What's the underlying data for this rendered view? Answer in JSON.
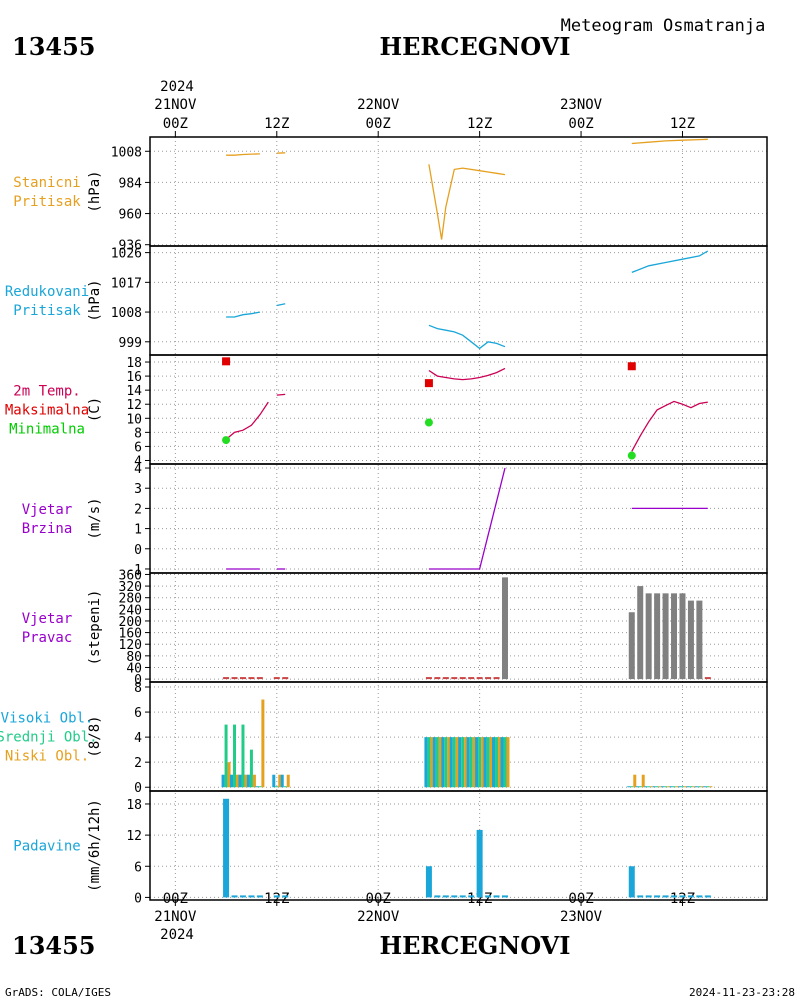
{
  "header": {
    "station_id": "13455",
    "station_name": "HERCEGNOVI",
    "chart_title": "Meteogram Osmatranja"
  },
  "footer": {
    "station_id": "13455",
    "station_name": "HERCEGNOVI",
    "credit": "GrADS: COLA/IGES",
    "timestamp": "2024-11-23-23:28"
  },
  "time_axis": {
    "year": "2024",
    "ticks": [
      {
        "hour": 0,
        "line1": "00Z",
        "line2": "21NOV"
      },
      {
        "hour": 12,
        "line1": "12Z",
        "line2": ""
      },
      {
        "hour": 24,
        "line1": "00Z",
        "line2": "22NOV"
      },
      {
        "hour": 36,
        "line1": "12Z",
        "line2": ""
      },
      {
        "hour": 48,
        "line1": "00Z",
        "line2": "23NOV"
      },
      {
        "hour": 60,
        "line1": "12Z",
        "line2": ""
      }
    ],
    "xlim_hours": [
      -3,
      70
    ],
    "x_units": "hours since 2024-11-21 00Z"
  },
  "chart_data": [
    {
      "type": "line",
      "panel_labels": [
        {
          "text": "Stanicni",
          "color": "#e6a020"
        },
        {
          "text": "Pritisak",
          "color": "#e6a020"
        }
      ],
      "ylabel": "(hPa)",
      "ylim": [
        935,
        1019
      ],
      "yticks": [
        936,
        960,
        984,
        1008
      ],
      "color": "#e6a020",
      "series": [
        {
          "points": [
            [
              6,
              1005
            ],
            [
              7,
              1005
            ],
            [
              8,
              1005.5
            ],
            [
              9,
              1005.8
            ],
            [
              10,
              1006
            ]
          ]
        },
        {
          "points": [
            [
              12,
              1006.5
            ],
            [
              13,
              1006.8
            ]
          ]
        },
        {
          "points": [
            [
              30,
              998
            ],
            [
              31,
              960
            ],
            [
              31.5,
              940
            ],
            [
              32,
              965
            ],
            [
              33,
              994
            ],
            [
              34,
              995
            ],
            [
              36,
              993
            ],
            [
              37,
              992
            ],
            [
              38,
              991
            ],
            [
              39,
              990
            ]
          ]
        },
        {
          "points": [
            [
              54,
              1014
            ],
            [
              56,
              1015
            ],
            [
              58,
              1016
            ],
            [
              60,
              1016.5
            ],
            [
              62,
              1017
            ],
            [
              63,
              1017.2
            ]
          ]
        }
      ]
    },
    {
      "type": "line",
      "panel_labels": [
        {
          "text": "Redukovani",
          "color": "#1aa6d9"
        },
        {
          "text": "Pritisak",
          "color": "#1aa6d9"
        }
      ],
      "ylabel": "(hPa)",
      "ylim": [
        995,
        1028
      ],
      "yticks": [
        999,
        1008,
        1017,
        1026
      ],
      "color": "#1aa6d9",
      "series": [
        {
          "points": [
            [
              6,
              1006.5
            ],
            [
              7,
              1006.5
            ],
            [
              8,
              1007.2
            ],
            [
              9,
              1007.5
            ],
            [
              10,
              1008
            ]
          ]
        },
        {
          "points": [
            [
              12,
              1010
            ],
            [
              13,
              1010.5
            ]
          ]
        },
        {
          "points": [
            [
              30,
              1004
            ],
            [
              31,
              1003
            ],
            [
              32,
              1002.5
            ],
            [
              33,
              1002
            ],
            [
              34,
              1001
            ],
            [
              35,
              999
            ],
            [
              36,
              997
            ],
            [
              37,
              999
            ],
            [
              38,
              998.5
            ],
            [
              39,
              997.5
            ]
          ]
        },
        {
          "points": [
            [
              54,
              1020
            ],
            [
              56,
              1022
            ],
            [
              58,
              1023
            ],
            [
              60,
              1024
            ],
            [
              62,
              1025
            ],
            [
              63,
              1026.5
            ]
          ]
        }
      ]
    },
    {
      "type": "line",
      "panel_labels": [
        {
          "text": "2m Temp.",
          "color": "#cc0055"
        },
        {
          "text": "Maksimalna",
          "color": "#e00000"
        },
        {
          "text": "Minimalna",
          "color": "#00cc00"
        }
      ],
      "ylabel": "(C)",
      "ylim": [
        3.5,
        19
      ],
      "yticks": [
        4,
        6,
        8,
        10,
        12,
        14,
        16,
        18
      ],
      "color": "#cc0055",
      "max_color": "#e00000",
      "min_color": "#22dd22",
      "series": [
        {
          "points": [
            [
              6,
              7
            ],
            [
              7,
              8
            ],
            [
              8,
              8.3
            ],
            [
              9,
              9
            ],
            [
              10,
              10.5
            ],
            [
              11,
              12.3
            ]
          ]
        },
        {
          "points": [
            [
              12,
              13.3
            ],
            [
              13,
              13.4
            ]
          ]
        },
        {
          "points": [
            [
              30,
              16.8
            ],
            [
              31,
              16
            ],
            [
              32,
              15.8
            ],
            [
              33,
              15.6
            ],
            [
              34,
              15.5
            ],
            [
              35,
              15.6
            ],
            [
              36,
              15.8
            ],
            [
              37,
              16.1
            ],
            [
              38,
              16.5
            ],
            [
              39,
              17.1
            ]
          ]
        },
        {
          "points": [
            [
              54,
              5.3
            ],
            [
              55,
              7.5
            ],
            [
              56,
              9.5
            ],
            [
              57,
              11.2
            ],
            [
              58,
              11.8
            ],
            [
              59,
              12.4
            ],
            [
              60,
              12
            ],
            [
              61,
              11.5
            ],
            [
              62,
              12.1
            ],
            [
              63,
              12.3
            ]
          ]
        }
      ],
      "max_points": [
        [
          6,
          18.1
        ],
        [
          30,
          15
        ],
        [
          54,
          17.4
        ]
      ],
      "min_points": [
        [
          6,
          6.9
        ],
        [
          30,
          9.4
        ],
        [
          54,
          4.7
        ]
      ]
    },
    {
      "type": "line",
      "panel_labels": [
        {
          "text": "Vjetar",
          "color": "#9900cc"
        },
        {
          "text": "Brzina",
          "color": "#9900cc"
        }
      ],
      "ylabel": "(m/s)",
      "ylim": [
        -1.2,
        4.2
      ],
      "yticks": [
        -1,
        0,
        1,
        2,
        3,
        4
      ],
      "color": "#9900cc",
      "series": [
        {
          "points": [
            [
              6,
              -1
            ],
            [
              10,
              -1
            ]
          ]
        },
        {
          "points": [
            [
              12,
              -1
            ],
            [
              13,
              -1
            ]
          ]
        },
        {
          "points": [
            [
              30,
              -1
            ],
            [
              36,
              -1
            ],
            [
              39,
              4
            ]
          ]
        },
        {
          "points": [
            [
              54,
              2
            ],
            [
              63,
              2
            ]
          ]
        }
      ]
    },
    {
      "type": "bar",
      "panel_labels": [
        {
          "text": "Vjetar",
          "color": "#9900cc"
        },
        {
          "text": "Pravac",
          "color": "#9900cc"
        }
      ],
      "ylabel": "(stepeni)",
      "ylim": [
        -10,
        365
      ],
      "yticks": [
        0,
        40,
        80,
        120,
        160,
        200,
        240,
        280,
        320,
        360
      ],
      "bar_color": "#808080",
      "baseline_color": "#cc4444",
      "x": [
        6,
        7,
        8,
        9,
        10,
        12,
        13,
        30,
        31,
        32,
        33,
        34,
        35,
        36,
        37,
        38,
        39,
        54,
        55,
        56,
        57,
        58,
        59,
        60,
        61,
        62,
        63
      ],
      "values": [
        0,
        0,
        0,
        0,
        0,
        0,
        0,
        0,
        0,
        0,
        0,
        0,
        0,
        0,
        0,
        0,
        350,
        230,
        320,
        295,
        295,
        295,
        295,
        295,
        270,
        270,
        0
      ]
    },
    {
      "type": "bar",
      "panel_labels": [
        {
          "text": "Visoki Obl.",
          "color": "#1aa6d9"
        },
        {
          "text": "Srednji Obl.",
          "color": "#22cc88"
        },
        {
          "text": "Niski Obl.",
          "color": "#e6a020"
        }
      ],
      "ylabel": "(8/8)",
      "ylim": [
        -0.3,
        8.4
      ],
      "yticks": [
        0,
        2,
        4,
        6,
        8
      ],
      "x": [
        6,
        7,
        8,
        9,
        10,
        12,
        13,
        30,
        31,
        32,
        33,
        34,
        35,
        36,
        37,
        38,
        39,
        54,
        55,
        56,
        57,
        58,
        59,
        60,
        61,
        62,
        63
      ],
      "series": [
        {
          "name": "Visoki Obl.",
          "color": "#1aa6d9",
          "values": [
            1,
            1,
            1,
            1,
            0,
            1,
            1,
            4,
            4,
            4,
            4,
            4,
            4,
            4,
            4,
            4,
            4,
            0,
            0,
            0,
            0,
            0,
            0,
            0,
            0,
            0,
            0
          ]
        },
        {
          "name": "Srednji Obl.",
          "color": "#22cc88",
          "values": [
            5,
            5,
            5,
            3,
            0,
            0,
            0,
            4,
            4,
            4,
            4,
            4,
            4,
            4,
            4,
            4,
            4,
            0,
            0,
            0,
            0,
            0,
            0,
            0,
            0,
            0,
            0
          ]
        },
        {
          "name": "Niski Obl.",
          "color": "#e6a020",
          "values": [
            2,
            1,
            1,
            1,
            7,
            1,
            1,
            4,
            4,
            4,
            4,
            4,
            4,
            4,
            4,
            4,
            4,
            1,
            1,
            0,
            0,
            0,
            0,
            0,
            0,
            0,
            0
          ]
        }
      ]
    },
    {
      "type": "bar",
      "panel_labels": [
        {
          "text": "Padavine",
          "color": "#1aa6d9"
        }
      ],
      "ylabel": "(mm/6h/12h)",
      "ylim": [
        -0.5,
        20.5
      ],
      "yticks": [
        0,
        6,
        12,
        18
      ],
      "bar_color": "#1aa6d9",
      "x": [
        6,
        7,
        8,
        9,
        10,
        12,
        13,
        30,
        31,
        32,
        33,
        34,
        35,
        36,
        37,
        38,
        39,
        54,
        55,
        56,
        57,
        58,
        59,
        60,
        61,
        62,
        63
      ],
      "values": [
        19,
        0,
        0,
        0,
        0,
        0,
        0,
        6,
        0,
        0,
        0,
        0,
        0,
        13,
        0,
        0,
        0,
        6,
        0,
        0,
        0,
        0,
        0,
        0,
        0,
        0,
        0
      ]
    }
  ]
}
